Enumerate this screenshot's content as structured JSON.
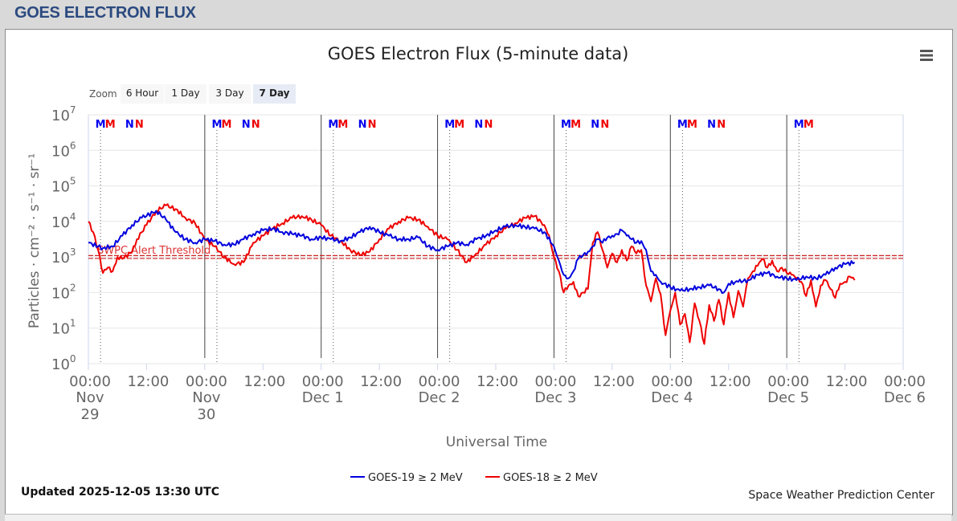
{
  "page": {
    "header_title": "GOES ELECTRON FLUX",
    "updated": "Updated 2025-12-05 13:30 UTC",
    "credit": "Space Weather Prediction Center",
    "menu_icon": "hamburger-menu-icon"
  },
  "zoom": {
    "label": "Zoom",
    "buttons": [
      {
        "label": "6 Hour",
        "active": false
      },
      {
        "label": "1 Day",
        "active": false
      },
      {
        "label": "3 Day",
        "active": false
      },
      {
        "label": "7 Day",
        "active": true
      }
    ]
  },
  "chart_data": {
    "type": "line",
    "title": "GOES Electron Flux (5-minute data)",
    "xlabel": "Universal Time",
    "ylabel": "Particles · cm⁻² · s⁻¹ · sr⁻¹",
    "yscale": "log",
    "ylim_exp": [
      0,
      7
    ],
    "ytick_exponents": [
      "0",
      "1",
      "2",
      "3",
      "4",
      "5",
      "6",
      "7"
    ],
    "x_range_hours": [
      0,
      168
    ],
    "x_ticks": [
      {
        "h": 0,
        "time": "00:00",
        "date": "Nov",
        "date2": "29"
      },
      {
        "h": 12,
        "time": "12:00",
        "date": "",
        "date2": ""
      },
      {
        "h": 24,
        "time": "00:00",
        "date": "Nov",
        "date2": "30"
      },
      {
        "h": 36,
        "time": "12:00",
        "date": "",
        "date2": ""
      },
      {
        "h": 48,
        "time": "00:00",
        "date": "Dec 1",
        "date2": ""
      },
      {
        "h": 60,
        "time": "12:00",
        "date": "",
        "date2": ""
      },
      {
        "h": 72,
        "time": "00:00",
        "date": "Dec 2",
        "date2": ""
      },
      {
        "h": 84,
        "time": "12:00",
        "date": "",
        "date2": ""
      },
      {
        "h": 96,
        "time": "00:00",
        "date": "Dec 3",
        "date2": ""
      },
      {
        "h": 108,
        "time": "12:00",
        "date": "",
        "date2": ""
      },
      {
        "h": 120,
        "time": "00:00",
        "date": "Dec 4",
        "date2": ""
      },
      {
        "h": 132,
        "time": "12:00",
        "date": "",
        "date2": ""
      },
      {
        "h": 144,
        "time": "00:00",
        "date": "Dec 5",
        "date2": ""
      },
      {
        "h": 156,
        "time": "12:00",
        "date": "",
        "date2": ""
      },
      {
        "h": 168,
        "time": "00:00",
        "date": "Dec 6",
        "date2": ""
      }
    ],
    "threshold": {
      "label": "SWPC Alert Threshold",
      "value": 1000
    },
    "markers": [
      {
        "label": "M",
        "h": 2.5,
        "color": "#0000ee",
        "line": true
      },
      {
        "label": "M",
        "h": 4.5,
        "color": "#ee0000",
        "line": false
      },
      {
        "label": "N",
        "h": 8.5,
        "color": "#0000ee",
        "line": false
      },
      {
        "label": "N",
        "h": 10.5,
        "color": "#ee0000",
        "line": false
      },
      {
        "label": "M",
        "h": 26.5,
        "color": "#0000ee",
        "line": true
      },
      {
        "label": "M",
        "h": 28.5,
        "color": "#ee0000",
        "line": false
      },
      {
        "label": "N",
        "h": 32.5,
        "color": "#0000ee",
        "line": false
      },
      {
        "label": "N",
        "h": 34.5,
        "color": "#ee0000",
        "line": false
      },
      {
        "label": "M",
        "h": 50.5,
        "color": "#0000ee",
        "line": true
      },
      {
        "label": "M",
        "h": 52.5,
        "color": "#ee0000",
        "line": false
      },
      {
        "label": "N",
        "h": 56.5,
        "color": "#0000ee",
        "line": false
      },
      {
        "label": "N",
        "h": 58.5,
        "color": "#ee0000",
        "line": false
      },
      {
        "label": "M",
        "h": 74.5,
        "color": "#0000ee",
        "line": true
      },
      {
        "label": "M",
        "h": 76.5,
        "color": "#ee0000",
        "line": false
      },
      {
        "label": "N",
        "h": 80.5,
        "color": "#0000ee",
        "line": false
      },
      {
        "label": "N",
        "h": 82.5,
        "color": "#ee0000",
        "line": false
      },
      {
        "label": "M",
        "h": 98.5,
        "color": "#0000ee",
        "line": true
      },
      {
        "label": "M",
        "h": 100.5,
        "color": "#ee0000",
        "line": false
      },
      {
        "label": "N",
        "h": 104.5,
        "color": "#0000ee",
        "line": false
      },
      {
        "label": "N",
        "h": 106.5,
        "color": "#ee0000",
        "line": false
      },
      {
        "label": "M",
        "h": 122.5,
        "color": "#0000ee",
        "line": true
      },
      {
        "label": "M",
        "h": 124.5,
        "color": "#ee0000",
        "line": false
      },
      {
        "label": "N",
        "h": 128.5,
        "color": "#0000ee",
        "line": false
      },
      {
        "label": "N",
        "h": 130.5,
        "color": "#ee0000",
        "line": false
      },
      {
        "label": "M",
        "h": 146.5,
        "color": "#0000ee",
        "line": true
      },
      {
        "label": "M",
        "h": 148.5,
        "color": "#ee0000",
        "line": false
      }
    ],
    "series": [
      {
        "name": "GOES-19 ≥ 2 MeV",
        "color": "#0000dd",
        "points": [
          [
            0,
            3.4
          ],
          [
            2,
            3.3
          ],
          [
            3,
            3.25
          ],
          [
            5,
            3.3
          ],
          [
            7,
            3.6
          ],
          [
            9,
            3.9
          ],
          [
            11,
            4.1
          ],
          [
            14,
            4.3
          ],
          [
            16,
            4.05
          ],
          [
            18,
            3.7
          ],
          [
            20,
            3.5
          ],
          [
            22,
            3.4
          ],
          [
            24,
            3.5
          ],
          [
            26,
            3.45
          ],
          [
            28,
            3.35
          ],
          [
            30,
            3.35
          ],
          [
            32,
            3.5
          ],
          [
            34,
            3.65
          ],
          [
            36,
            3.75
          ],
          [
            38,
            3.8
          ],
          [
            40,
            3.7
          ],
          [
            42,
            3.65
          ],
          [
            44,
            3.6
          ],
          [
            46,
            3.5
          ],
          [
            48,
            3.55
          ],
          [
            50,
            3.5
          ],
          [
            52,
            3.45
          ],
          [
            54,
            3.55
          ],
          [
            56,
            3.7
          ],
          [
            58,
            3.85
          ],
          [
            60,
            3.7
          ],
          [
            62,
            3.6
          ],
          [
            64,
            3.5
          ],
          [
            66,
            3.5
          ],
          [
            68,
            3.55
          ],
          [
            70,
            3.3
          ],
          [
            72,
            3.2
          ],
          [
            74,
            3.3
          ],
          [
            76,
            3.4
          ],
          [
            78,
            3.35
          ],
          [
            80,
            3.5
          ],
          [
            82,
            3.6
          ],
          [
            84,
            3.75
          ],
          [
            86,
            3.85
          ],
          [
            88,
            3.9
          ],
          [
            90,
            3.85
          ],
          [
            92,
            3.8
          ],
          [
            94,
            3.7
          ],
          [
            96,
            3.3
          ],
          [
            97,
            2.9
          ],
          [
            98,
            2.5
          ],
          [
            99,
            2.4
          ],
          [
            100,
            2.6
          ],
          [
            101,
            2.95
          ],
          [
            102,
            3.05
          ],
          [
            103,
            3.15
          ],
          [
            104,
            3.3
          ],
          [
            105,
            3.5
          ],
          [
            106,
            3.4
          ],
          [
            107,
            3.55
          ],
          [
            108,
            3.6
          ],
          [
            109,
            3.65
          ],
          [
            110,
            3.75
          ],
          [
            111,
            3.6
          ],
          [
            112,
            3.5
          ],
          [
            113,
            3.4
          ],
          [
            114,
            3.45
          ],
          [
            115,
            3.2
          ],
          [
            116,
            2.6
          ],
          [
            117,
            2.5
          ],
          [
            118,
            2.3
          ],
          [
            120,
            2.15
          ],
          [
            122,
            2.05
          ],
          [
            124,
            2.1
          ],
          [
            126,
            2.15
          ],
          [
            128,
            2.2
          ],
          [
            130,
            2.1
          ],
          [
            131,
            2.0
          ],
          [
            132,
            2.25
          ],
          [
            134,
            2.3
          ],
          [
            136,
            2.35
          ],
          [
            138,
            2.5
          ],
          [
            140,
            2.55
          ],
          [
            142,
            2.45
          ],
          [
            144,
            2.4
          ],
          [
            146,
            2.35
          ],
          [
            148,
            2.45
          ],
          [
            150,
            2.4
          ],
          [
            152,
            2.5
          ],
          [
            154,
            2.7
          ],
          [
            156,
            2.8
          ],
          [
            158,
            2.85
          ]
        ]
      },
      {
        "name": "GOES-18 ≥ 2 MeV",
        "color": "#ee0000",
        "points": [
          [
            0,
            4.0
          ],
          [
            1,
            3.7
          ],
          [
            2,
            3.2
          ],
          [
            3,
            2.55
          ],
          [
            4,
            2.7
          ],
          [
            5,
            2.6
          ],
          [
            6,
            3.0
          ],
          [
            7,
            2.95
          ],
          [
            9,
            3.15
          ],
          [
            10,
            3.5
          ],
          [
            12,
            3.9
          ],
          [
            14,
            4.3
          ],
          [
            16,
            4.45
          ],
          [
            18,
            4.35
          ],
          [
            20,
            4.1
          ],
          [
            22,
            3.95
          ],
          [
            24,
            3.5
          ],
          [
            26,
            3.3
          ],
          [
            28,
            3.0
          ],
          [
            30,
            2.8
          ],
          [
            32,
            2.85
          ],
          [
            34,
            3.4
          ],
          [
            36,
            3.6
          ],
          [
            38,
            3.8
          ],
          [
            40,
            3.95
          ],
          [
            42,
            4.1
          ],
          [
            44,
            4.15
          ],
          [
            46,
            4.05
          ],
          [
            48,
            3.9
          ],
          [
            50,
            3.6
          ],
          [
            52,
            3.45
          ],
          [
            54,
            3.2
          ],
          [
            56,
            3.05
          ],
          [
            58,
            3.15
          ],
          [
            60,
            3.5
          ],
          [
            62,
            3.8
          ],
          [
            64,
            4.0
          ],
          [
            66,
            4.1
          ],
          [
            68,
            4.05
          ],
          [
            70,
            3.85
          ],
          [
            72,
            3.6
          ],
          [
            74,
            3.5
          ],
          [
            76,
            3.2
          ],
          [
            78,
            2.85
          ],
          [
            80,
            3.1
          ],
          [
            82,
            3.35
          ],
          [
            84,
            3.6
          ],
          [
            86,
            3.8
          ],
          [
            88,
            3.95
          ],
          [
            90,
            4.1
          ],
          [
            92,
            4.15
          ],
          [
            94,
            3.9
          ],
          [
            95,
            3.6
          ],
          [
            96,
            3.0
          ],
          [
            97,
            2.6
          ],
          [
            98,
            2.0
          ],
          [
            99,
            2.2
          ],
          [
            100,
            2.3
          ],
          [
            101,
            1.9
          ],
          [
            102,
            2.0
          ],
          [
            103,
            2.1
          ],
          [
            104,
            3.4
          ],
          [
            105,
            3.7
          ],
          [
            106,
            3.2
          ],
          [
            107,
            2.7
          ],
          [
            108,
            3.1
          ],
          [
            109,
            2.85
          ],
          [
            110,
            3.2
          ],
          [
            111,
            2.9
          ],
          [
            112,
            3.3
          ],
          [
            113,
            3.1
          ],
          [
            114,
            3.2
          ],
          [
            115,
            2.2
          ],
          [
            116,
            1.75
          ],
          [
            117,
            2.4
          ],
          [
            118,
            1.95
          ],
          [
            119,
            0.8
          ],
          [
            120,
            1.5
          ],
          [
            121,
            2.0
          ],
          [
            122,
            1.1
          ],
          [
            123,
            1.4
          ],
          [
            124,
            0.6
          ],
          [
            125,
            1.7
          ],
          [
            126,
            1.2
          ],
          [
            127,
            0.55
          ],
          [
            128,
            1.65
          ],
          [
            129,
            1.2
          ],
          [
            130,
            1.8
          ],
          [
            131,
            1.1
          ],
          [
            132,
            2.0
          ],
          [
            133,
            1.3
          ],
          [
            134,
            2.05
          ],
          [
            135,
            1.6
          ],
          [
            136,
            2.4
          ],
          [
            137,
            2.6
          ],
          [
            138,
            2.75
          ],
          [
            139,
            2.95
          ],
          [
            140,
            2.7
          ],
          [
            141,
            2.9
          ],
          [
            142,
            2.6
          ],
          [
            143,
            2.7
          ],
          [
            144,
            2.55
          ],
          [
            145,
            2.5
          ],
          [
            146,
            2.4
          ],
          [
            147,
            2.3
          ],
          [
            148,
            1.9
          ],
          [
            149,
            2.35
          ],
          [
            150,
            1.6
          ],
          [
            151,
            2.2
          ],
          [
            152,
            2.35
          ],
          [
            153,
            2.1
          ],
          [
            154,
            1.85
          ],
          [
            155,
            2.25
          ],
          [
            156,
            2.3
          ],
          [
            157,
            2.45
          ],
          [
            158,
            2.35
          ]
        ]
      }
    ]
  }
}
